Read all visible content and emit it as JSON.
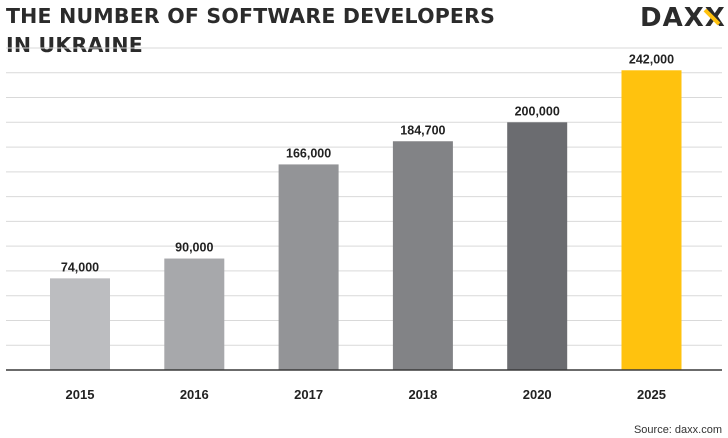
{
  "header": {
    "title_line1": "THE NUMBER OF SOFTWARE DEVELOPERS",
    "title_line2": "IN UKRAINE",
    "logo_text": "DAXX"
  },
  "footer": {
    "source": "Source: daxx.com"
  },
  "chart_data": {
    "type": "bar",
    "title": "THE NUMBER OF SOFTWARE DEVELOPERS IN UKRAINE",
    "xlabel": "",
    "ylabel": "",
    "categories": [
      "2015",
      "2016",
      "2017",
      "2018",
      "2020",
      "2025"
    ],
    "values": [
      74000,
      90000,
      166000,
      184700,
      200000,
      242000
    ],
    "value_labels": [
      "74,000",
      "90,000",
      "166,000",
      "184,700",
      "200,000",
      "242,000"
    ],
    "colors": [
      "#bcbdc0",
      "#a7a8ab",
      "#939497",
      "#828386",
      "#6b6c70",
      "#ffc20e"
    ],
    "ylim": [
      0,
      260000
    ],
    "grid": true,
    "legend": "none"
  }
}
